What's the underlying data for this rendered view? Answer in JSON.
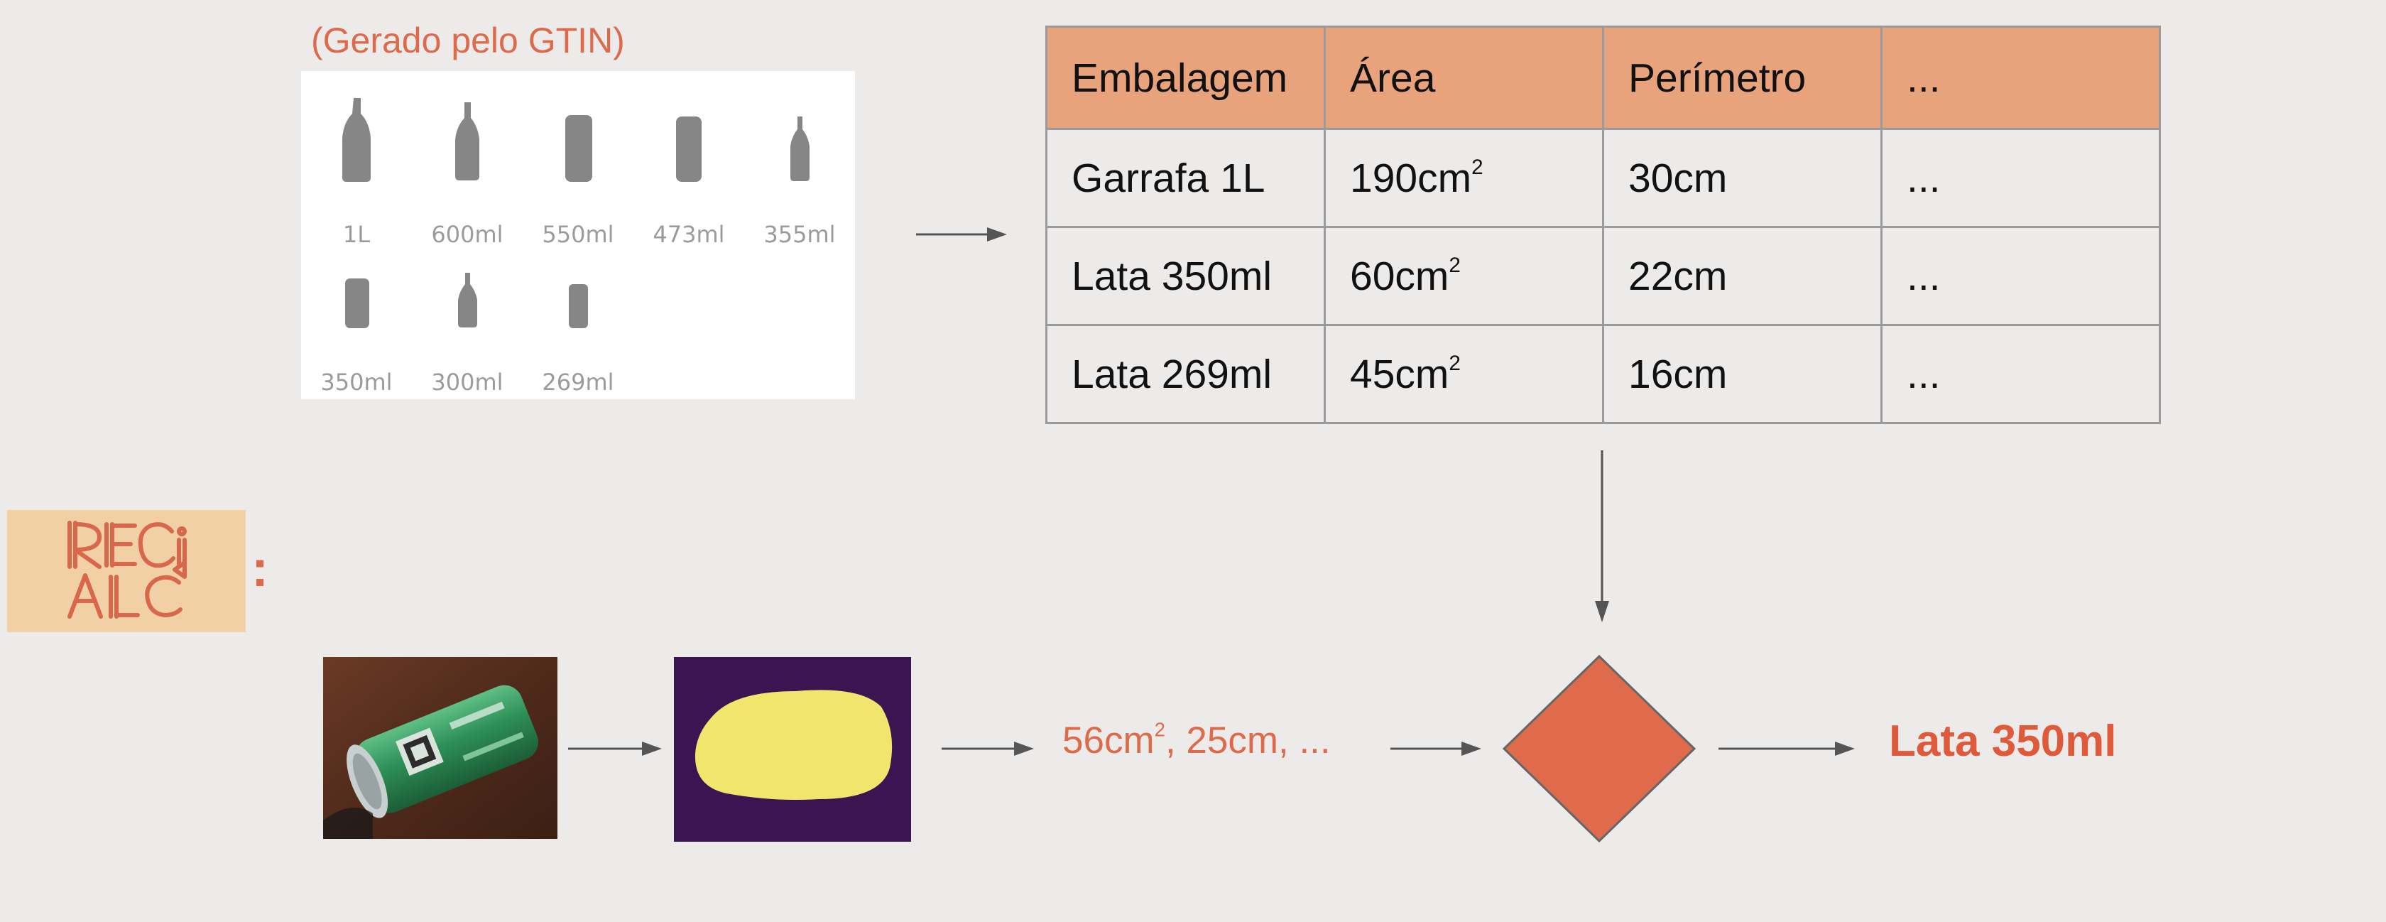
{
  "gtin_caption": "(Gerado pelo GTIN)",
  "packages": [
    {
      "label": "1L",
      "icon": "bottle-icon"
    },
    {
      "label": "600ml",
      "icon": "bottle-icon"
    },
    {
      "label": "550ml",
      "icon": "can-icon"
    },
    {
      "label": "473ml",
      "icon": "can-icon"
    },
    {
      "label": "355ml",
      "icon": "bottle-icon"
    },
    {
      "label": "350ml",
      "icon": "can-icon"
    },
    {
      "label": "300ml",
      "icon": "bottle-icon"
    },
    {
      "label": "269ml",
      "icon": "can-icon"
    }
  ],
  "table": {
    "headers": [
      "Embalagem",
      "Área",
      "Perímetro",
      "..."
    ],
    "rows": [
      [
        "Garrafa 1L",
        "190cm",
        "30cm",
        "..."
      ],
      [
        "Lata 350ml",
        "60cm",
        "22cm",
        "..."
      ],
      [
        "Lata 269ml",
        "45cm",
        "16cm",
        "..."
      ]
    ],
    "area_unit_superscript": "2"
  },
  "logo_text": "RECICLA",
  "logo_colon": ":",
  "measurement": {
    "area": "56cm",
    "superscript": "2",
    "rest": ", 25cm, ..."
  },
  "result": "Lata 350ml",
  "colors": {
    "accent": "#de6a4c",
    "table_header": "#e8a27c",
    "logo_bg": "#f0d0a4",
    "diamond": "#e06b4c",
    "mask_bg": "#3a1551",
    "mask_fg": "#f2e56d"
  }
}
